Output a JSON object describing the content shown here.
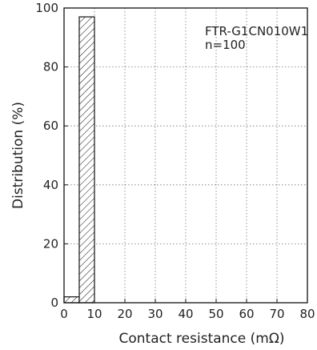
{
  "chart_data": {
    "type": "bar",
    "xlabel": "Contact resistance (mΩ)",
    "ylabel": "Distribution (%)",
    "xlim": [
      0,
      80
    ],
    "ylim": [
      0,
      100
    ],
    "x_ticks": [
      "0",
      "10",
      "20",
      "30",
      "40",
      "50",
      "60",
      "70",
      "80"
    ],
    "y_ticks": [
      "0",
      "20",
      "40",
      "60",
      "80",
      "100"
    ],
    "grid": true,
    "annotations": [
      "FTR-G1CN010W1",
      "n=100"
    ],
    "bins": [
      {
        "x_start": 0,
        "x_end": 5,
        "value": 2
      },
      {
        "x_start": 5,
        "x_end": 10,
        "value": 97
      }
    ],
    "hatch": "diagonal"
  }
}
